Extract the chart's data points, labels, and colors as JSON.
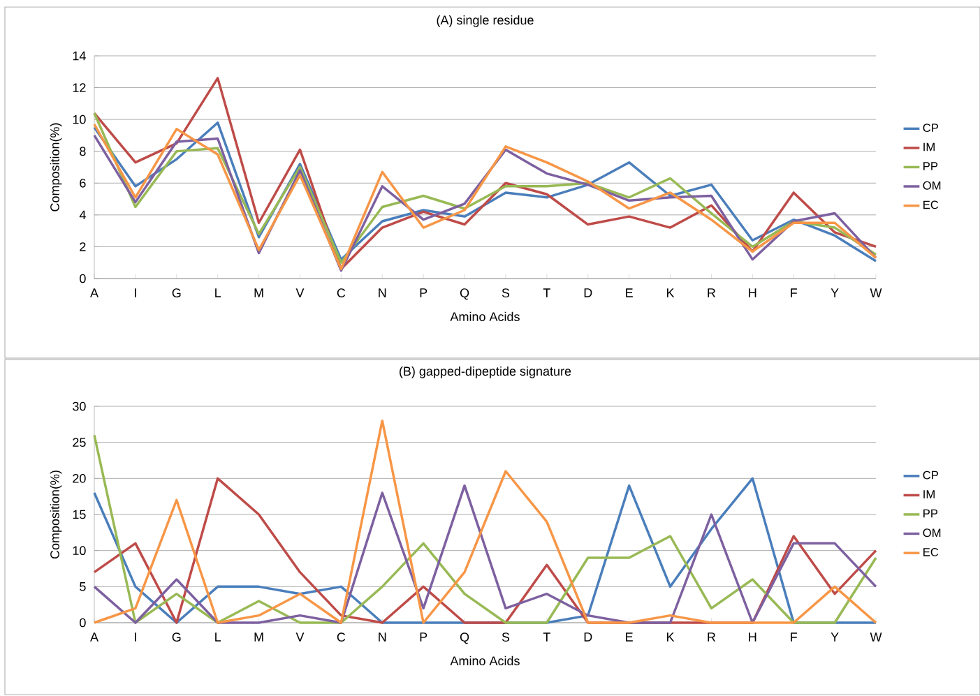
{
  "chart_data": [
    {
      "type": "line",
      "title": "(A) single residue",
      "xlabel": "Amino Acids",
      "ylabel": "Composition(%)",
      "categories": [
        "A",
        "I",
        "G",
        "L",
        "M",
        "V",
        "C",
        "N",
        "P",
        "Q",
        "S",
        "T",
        "D",
        "E",
        "K",
        "R",
        "H",
        "F",
        "Y",
        "W"
      ],
      "ylim": [
        0,
        14
      ],
      "yticks": [
        0,
        2,
        4,
        6,
        8,
        10,
        12,
        14
      ],
      "grid": "y",
      "legend": "right",
      "series": [
        {
          "name": "CP",
          "color": "#4a7ebb",
          "values": [
            9.5,
            5.8,
            7.5,
            9.8,
            2.6,
            7.2,
            1.2,
            3.6,
            4.3,
            3.9,
            5.4,
            5.1,
            5.9,
            7.3,
            5.2,
            5.9,
            2.4,
            3.7,
            2.7,
            1.1
          ]
        },
        {
          "name": "IM",
          "color": "#be4b48",
          "values": [
            10.4,
            7.3,
            8.5,
            12.6,
            3.5,
            8.1,
            0.6,
            3.2,
            4.2,
            3.4,
            6.0,
            5.3,
            3.4,
            3.9,
            3.2,
            4.6,
            1.7,
            5.4,
            2.9,
            2.0
          ]
        },
        {
          "name": "PP",
          "color": "#98b954",
          "values": [
            10.4,
            4.5,
            8.0,
            8.2,
            2.8,
            7.0,
            1.0,
            4.5,
            5.2,
            4.4,
            5.8,
            5.8,
            6.0,
            5.1,
            6.3,
            4.1,
            2.0,
            3.6,
            3.2,
            1.5
          ]
        },
        {
          "name": "OM",
          "color": "#7d60a0",
          "values": [
            9.0,
            4.8,
            8.6,
            8.8,
            1.6,
            6.8,
            0.5,
            5.8,
            3.7,
            4.7,
            8.1,
            6.6,
            5.9,
            4.9,
            5.1,
            5.2,
            1.2,
            3.6,
            4.1,
            1.3
          ]
        },
        {
          "name": "EC",
          "color": "#f79646",
          "values": [
            9.7,
            5.1,
            9.4,
            7.8,
            1.8,
            6.5,
            0.6,
            6.7,
            3.2,
            4.3,
            8.3,
            7.3,
            6.1,
            4.4,
            5.4,
            3.7,
            1.7,
            3.5,
            3.5,
            1.3
          ]
        }
      ]
    },
    {
      "type": "line",
      "title": "(B) gapped-dipeptide signature",
      "xlabel": "Amino Acids",
      "ylabel": "Composition(%)",
      "categories": [
        "A",
        "I",
        "G",
        "L",
        "M",
        "V",
        "C",
        "N",
        "P",
        "Q",
        "S",
        "T",
        "D",
        "E",
        "K",
        "R",
        "H",
        "F",
        "Y",
        "W"
      ],
      "ylim": [
        0,
        30
      ],
      "yticks": [
        0,
        5,
        10,
        15,
        20,
        25,
        30
      ],
      "grid": "y",
      "legend": "right",
      "series": [
        {
          "name": "CP",
          "color": "#4a7ebb",
          "values": [
            18,
            5,
            0,
            5,
            5,
            4,
            5,
            0,
            0,
            0,
            0,
            0,
            1,
            19,
            5,
            13,
            20,
            0,
            0,
            0
          ]
        },
        {
          "name": "IM",
          "color": "#be4b48",
          "values": [
            7,
            11,
            0,
            20,
            15,
            7,
            1,
            0,
            5,
            0,
            0,
            8,
            0,
            0,
            0,
            0,
            0,
            12,
            4,
            10
          ]
        },
        {
          "name": "PP",
          "color": "#98b954",
          "values": [
            26,
            0,
            4,
            0,
            3,
            0,
            0,
            5,
            11,
            4,
            0,
            0,
            9,
            9,
            12,
            2,
            6,
            0,
            0,
            9
          ]
        },
        {
          "name": "OM",
          "color": "#7d60a0",
          "values": [
            5,
            0,
            6,
            0,
            0,
            1,
            0,
            18,
            2,
            19,
            2,
            4,
            1,
            0,
            0,
            15,
            0,
            11,
            11,
            5
          ]
        },
        {
          "name": "EC",
          "color": "#f79646",
          "values": [
            0,
            2,
            17,
            0,
            1,
            4,
            0,
            28,
            0,
            7,
            21,
            14,
            0,
            0,
            1,
            0,
            0,
            0,
            5,
            0
          ]
        }
      ]
    }
  ]
}
